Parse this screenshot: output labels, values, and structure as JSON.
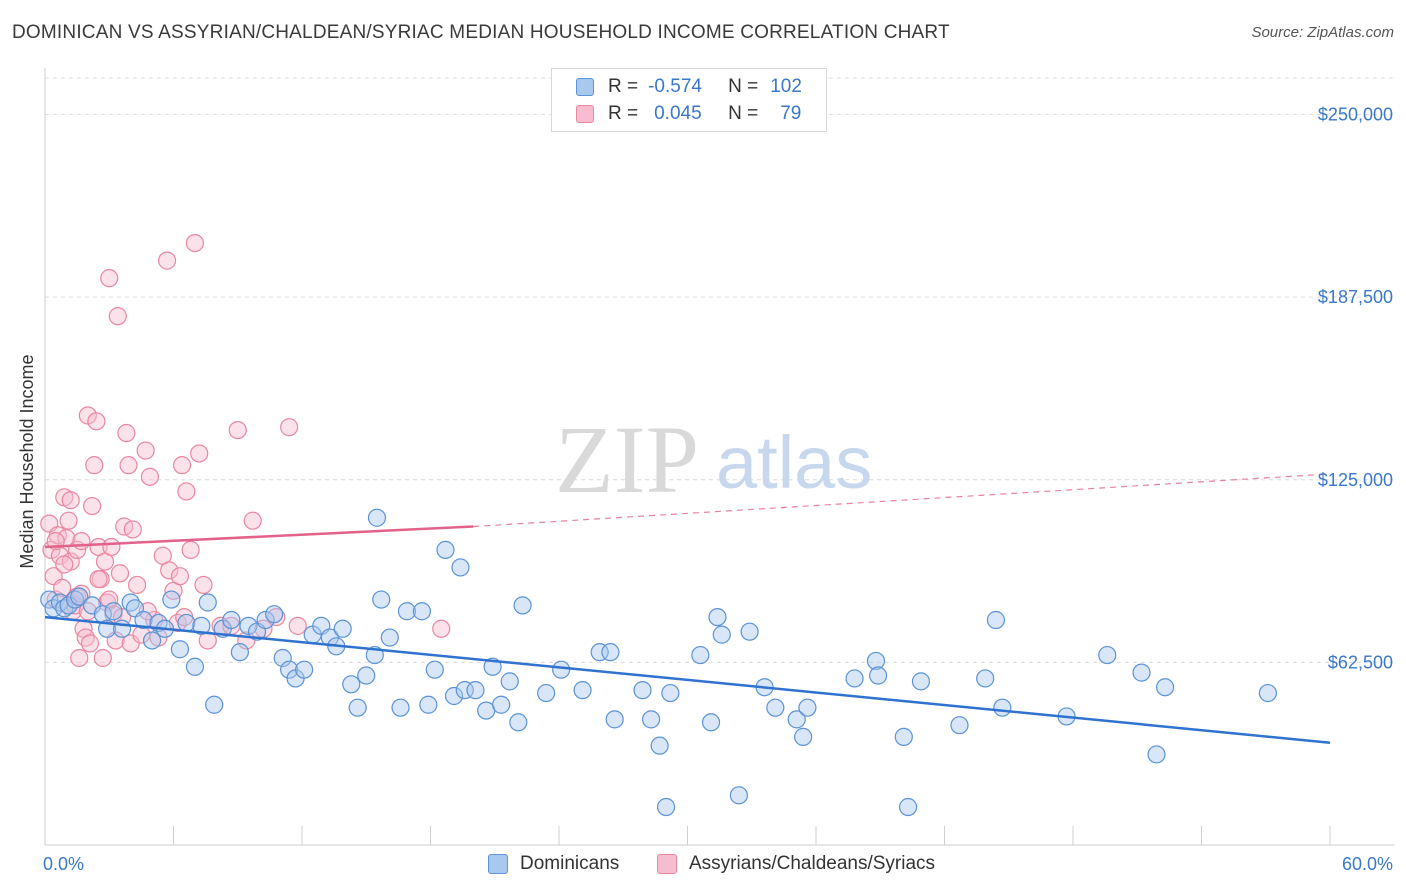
{
  "title": "DOMINICAN VS ASSYRIAN/CHALDEAN/SYRIAC MEDIAN HOUSEHOLD INCOME CORRELATION CHART",
  "source": "Source: ZipAtlas.com",
  "watermark": {
    "zip": "ZIP",
    "atlas": "atlas"
  },
  "colors": {
    "blue_fill": "#a9c8ee",
    "blue_stroke": "#5b93d6",
    "blue_line": "#2f72d0",
    "pink_fill": "#f6bdd0",
    "pink_stroke": "#e9879f",
    "pink_line": "#e3628a",
    "value_text": "#3a78c9",
    "grid": "#dcdcdc"
  },
  "legend_top": {
    "rows": [
      {
        "r_label": "R =",
        "r_value": "-0.574",
        "n_label": "N =",
        "n_value": "102"
      },
      {
        "r_label": "R =",
        "r_value": "0.045",
        "n_label": "N =",
        "n_value": "79"
      }
    ]
  },
  "legend_bottom": {
    "series1": "Dominicans",
    "series2": "Assyrians/Chaldeans/Syriacs"
  },
  "chart_data": {
    "type": "scatter",
    "title": "DOMINICAN VS ASSYRIAN/CHALDEAN/SYRIAC MEDIAN HOUSEHOLD INCOME CORRELATION CHART",
    "xlabel": "",
    "ylabel": "Median Household Income",
    "xlim": [
      0,
      60
    ],
    "ylim": [
      0,
      262500
    ],
    "x_tick_labels": [
      "0.0%",
      "60.0%"
    ],
    "y_ticks": [
      62500,
      125000,
      187500,
      250000
    ],
    "y_tick_labels": [
      "$62,500",
      "$125,000",
      "$187,500",
      "$250,000"
    ],
    "grid": true,
    "series": [
      {
        "name": "Dominicans",
        "r": -0.574,
        "n": 102,
        "trend": {
          "x": [
            0,
            60
          ],
          "y": [
            78000,
            35000
          ]
        },
        "points": [
          [
            0.2,
            84000
          ],
          [
            0.4,
            81000
          ],
          [
            0.7,
            83000
          ],
          [
            0.9,
            81000
          ],
          [
            1.1,
            82000
          ],
          [
            1.4,
            84000
          ],
          [
            1.6,
            85000
          ],
          [
            2.2,
            82000
          ],
          [
            2.7,
            79000
          ],
          [
            2.9,
            74000
          ],
          [
            3.2,
            80000
          ],
          [
            3.6,
            74000
          ],
          [
            4.0,
            83000
          ],
          [
            4.2,
            81000
          ],
          [
            4.6,
            77000
          ],
          [
            5.0,
            70000
          ],
          [
            5.3,
            76000
          ],
          [
            5.6,
            74000
          ],
          [
            5.9,
            84000
          ],
          [
            6.3,
            67000
          ],
          [
            6.6,
            76000
          ],
          [
            7.0,
            61000
          ],
          [
            7.3,
            75000
          ],
          [
            7.6,
            83000
          ],
          [
            7.9,
            48000
          ],
          [
            8.3,
            74000
          ],
          [
            8.7,
            77000
          ],
          [
            9.1,
            66000
          ],
          [
            9.5,
            75000
          ],
          [
            9.9,
            73000
          ],
          [
            10.3,
            77000
          ],
          [
            10.7,
            79000
          ],
          [
            11.1,
            64000
          ],
          [
            11.4,
            60000
          ],
          [
            11.7,
            57000
          ],
          [
            12.1,
            60000
          ],
          [
            12.5,
            72000
          ],
          [
            12.9,
            75000
          ],
          [
            13.3,
            71000
          ],
          [
            13.6,
            68000
          ],
          [
            13.9,
            74000
          ],
          [
            14.3,
            55000
          ],
          [
            14.6,
            47000
          ],
          [
            15.0,
            58000
          ],
          [
            15.4,
            65000
          ],
          [
            15.7,
            84000
          ],
          [
            16.1,
            71000
          ],
          [
            16.6,
            47000
          ],
          [
            16.9,
            80000
          ],
          [
            17.6,
            80000
          ],
          [
            17.9,
            48000
          ],
          [
            18.2,
            60000
          ],
          [
            18.7,
            101000
          ],
          [
            19.1,
            51000
          ],
          [
            19.4,
            95000
          ],
          [
            19.6,
            53000
          ],
          [
            20.1,
            53000
          ],
          [
            20.6,
            46000
          ],
          [
            20.9,
            61000
          ],
          [
            21.3,
            48000
          ],
          [
            21.7,
            56000
          ],
          [
            22.1,
            42000
          ],
          [
            22.3,
            82000
          ],
          [
            23.4,
            52000
          ],
          [
            24.1,
            60000
          ],
          [
            25.1,
            53000
          ],
          [
            25.9,
            66000
          ],
          [
            26.4,
            66000
          ],
          [
            26.6,
            43000
          ],
          [
            27.9,
            53000
          ],
          [
            28.3,
            43000
          ],
          [
            28.7,
            34000
          ],
          [
            29.0,
            13000
          ],
          [
            29.2,
            52000
          ],
          [
            30.6,
            65000
          ],
          [
            31.1,
            42000
          ],
          [
            31.4,
            78000
          ],
          [
            31.6,
            72000
          ],
          [
            32.4,
            17000
          ],
          [
            32.9,
            73000
          ],
          [
            33.6,
            54000
          ],
          [
            34.1,
            47000
          ],
          [
            35.1,
            43000
          ],
          [
            35.4,
            37000
          ],
          [
            35.6,
            47000
          ],
          [
            37.8,
            57000
          ],
          [
            38.8,
            63000
          ],
          [
            38.9,
            58000
          ],
          [
            40.1,
            37000
          ],
          [
            40.3,
            13000
          ],
          [
            40.9,
            56000
          ],
          [
            42.7,
            41000
          ],
          [
            43.9,
            57000
          ],
          [
            44.4,
            77000
          ],
          [
            44.7,
            47000
          ],
          [
            47.7,
            44000
          ],
          [
            49.6,
            65000
          ],
          [
            51.2,
            59000
          ],
          [
            51.9,
            31000
          ],
          [
            52.3,
            54000
          ],
          [
            57.1,
            52000
          ],
          [
            15.5,
            112000
          ]
        ]
      },
      {
        "name": "Assyrians/Chaldeans/Syriacs",
        "r": 0.045,
        "n": 79,
        "trend": {
          "x": [
            0,
            20,
            60
          ],
          "y": [
            102000,
            109000,
            127000
          ],
          "solid_until_x": 20
        },
        "points": [
          [
            0.2,
            110000
          ],
          [
            0.3,
            101000
          ],
          [
            0.4,
            92000
          ],
          [
            0.5,
            84000
          ],
          [
            0.6,
            106000
          ],
          [
            0.7,
            99000
          ],
          [
            0.8,
            88000
          ],
          [
            0.9,
            119000
          ],
          [
            1.0,
            105000
          ],
          [
            1.1,
            111000
          ],
          [
            1.2,
            97000
          ],
          [
            1.3,
            80000
          ],
          [
            1.4,
            82000
          ],
          [
            1.5,
            101000
          ],
          [
            1.6,
            64000
          ],
          [
            1.7,
            104000
          ],
          [
            1.8,
            74000
          ],
          [
            1.9,
            71000
          ],
          [
            2.0,
            147000
          ],
          [
            2.1,
            69000
          ],
          [
            2.2,
            116000
          ],
          [
            2.3,
            130000
          ],
          [
            2.4,
            145000
          ],
          [
            2.5,
            102000
          ],
          [
            2.6,
            91000
          ],
          [
            2.7,
            64000
          ],
          [
            2.8,
            97000
          ],
          [
            2.9,
            83000
          ],
          [
            3.0,
            194000
          ],
          [
            3.1,
            102000
          ],
          [
            3.2,
            79000
          ],
          [
            3.3,
            70000
          ],
          [
            3.4,
            181000
          ],
          [
            3.5,
            93000
          ],
          [
            3.6,
            78000
          ],
          [
            3.7,
            109000
          ],
          [
            3.8,
            141000
          ],
          [
            3.9,
            130000
          ],
          [
            4.0,
            69000
          ],
          [
            4.1,
            108000
          ],
          [
            4.3,
            89000
          ],
          [
            4.5,
            72000
          ],
          [
            4.7,
            135000
          ],
          [
            4.9,
            126000
          ],
          [
            5.1,
            77000
          ],
          [
            5.3,
            71000
          ],
          [
            5.5,
            99000
          ],
          [
            5.7,
            200000
          ],
          [
            5.8,
            94000
          ],
          [
            6.0,
            87000
          ],
          [
            6.2,
            76000
          ],
          [
            6.3,
            92000
          ],
          [
            6.4,
            130000
          ],
          [
            6.5,
            78000
          ],
          [
            6.6,
            121000
          ],
          [
            6.8,
            101000
          ],
          [
            7.0,
            206000
          ],
          [
            7.2,
            134000
          ],
          [
            7.4,
            89000
          ],
          [
            7.6,
            70000
          ],
          [
            8.2,
            75000
          ],
          [
            8.7,
            75000
          ],
          [
            9.0,
            142000
          ],
          [
            9.4,
            70000
          ],
          [
            9.7,
            111000
          ],
          [
            10.2,
            74000
          ],
          [
            10.8,
            78000
          ],
          [
            11.4,
            143000
          ],
          [
            11.8,
            75000
          ],
          [
            18.5,
            74000
          ],
          [
            1.5,
            85000
          ],
          [
            2.0,
            80000
          ],
          [
            0.9,
            96000
          ],
          [
            1.2,
            118000
          ],
          [
            3.0,
            84000
          ],
          [
            4.8,
            80000
          ],
          [
            0.5,
            104000
          ],
          [
            2.5,
            91000
          ],
          [
            1.7,
            86000
          ]
        ]
      }
    ]
  }
}
